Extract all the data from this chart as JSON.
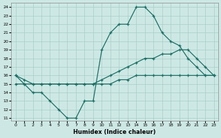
{
  "xlabel": "Humidex (Indice chaleur)",
  "bg_color": "#cde8e4",
  "grid_color": "#a8ccc8",
  "line_color": "#1a6e64",
  "xlim_min": -0.5,
  "xlim_max": 23.5,
  "ylim_min": 10.7,
  "ylim_max": 24.5,
  "xticks": [
    0,
    1,
    2,
    3,
    4,
    5,
    6,
    7,
    8,
    9,
    10,
    11,
    12,
    13,
    14,
    15,
    16,
    17,
    18,
    19,
    20,
    21,
    22,
    23
  ],
  "yticks": [
    11,
    12,
    13,
    14,
    15,
    16,
    17,
    18,
    19,
    20,
    21,
    22,
    23,
    24
  ],
  "line_jagged_x": [
    0,
    1,
    2,
    3,
    4,
    5,
    6,
    7,
    8,
    9,
    10,
    11,
    12,
    13,
    14,
    15,
    16,
    17,
    18,
    19,
    20,
    21,
    22,
    23
  ],
  "line_jagged_y": [
    16,
    15,
    14,
    14,
    13,
    12,
    11,
    11,
    13,
    13,
    19,
    21,
    22,
    22,
    24,
    24,
    23,
    21,
    20,
    19.5,
    18,
    17,
    16,
    16
  ],
  "line_upper_x": [
    0,
    1,
    2,
    3,
    4,
    5,
    6,
    7,
    8,
    9,
    10,
    11,
    12,
    13,
    14,
    15,
    16,
    17,
    18,
    19,
    20,
    21,
    22,
    23
  ],
  "line_upper_y": [
    16,
    15.5,
    15,
    15,
    15,
    15,
    15,
    15,
    15,
    15,
    15.5,
    16,
    16.5,
    17,
    17.5,
    18,
    18,
    18.5,
    18.5,
    19,
    19,
    18,
    17,
    16
  ],
  "line_lower_x": [
    0,
    1,
    2,
    3,
    4,
    5,
    6,
    7,
    8,
    9,
    10,
    11,
    12,
    13,
    14,
    15,
    16,
    17,
    18,
    19,
    20,
    21,
    22,
    23
  ],
  "line_lower_y": [
    15,
    15,
    15,
    15,
    15,
    15,
    15,
    15,
    15,
    15,
    15,
    15,
    15.5,
    15.5,
    16,
    16,
    16,
    16,
    16,
    16,
    16,
    16,
    16,
    16
  ]
}
